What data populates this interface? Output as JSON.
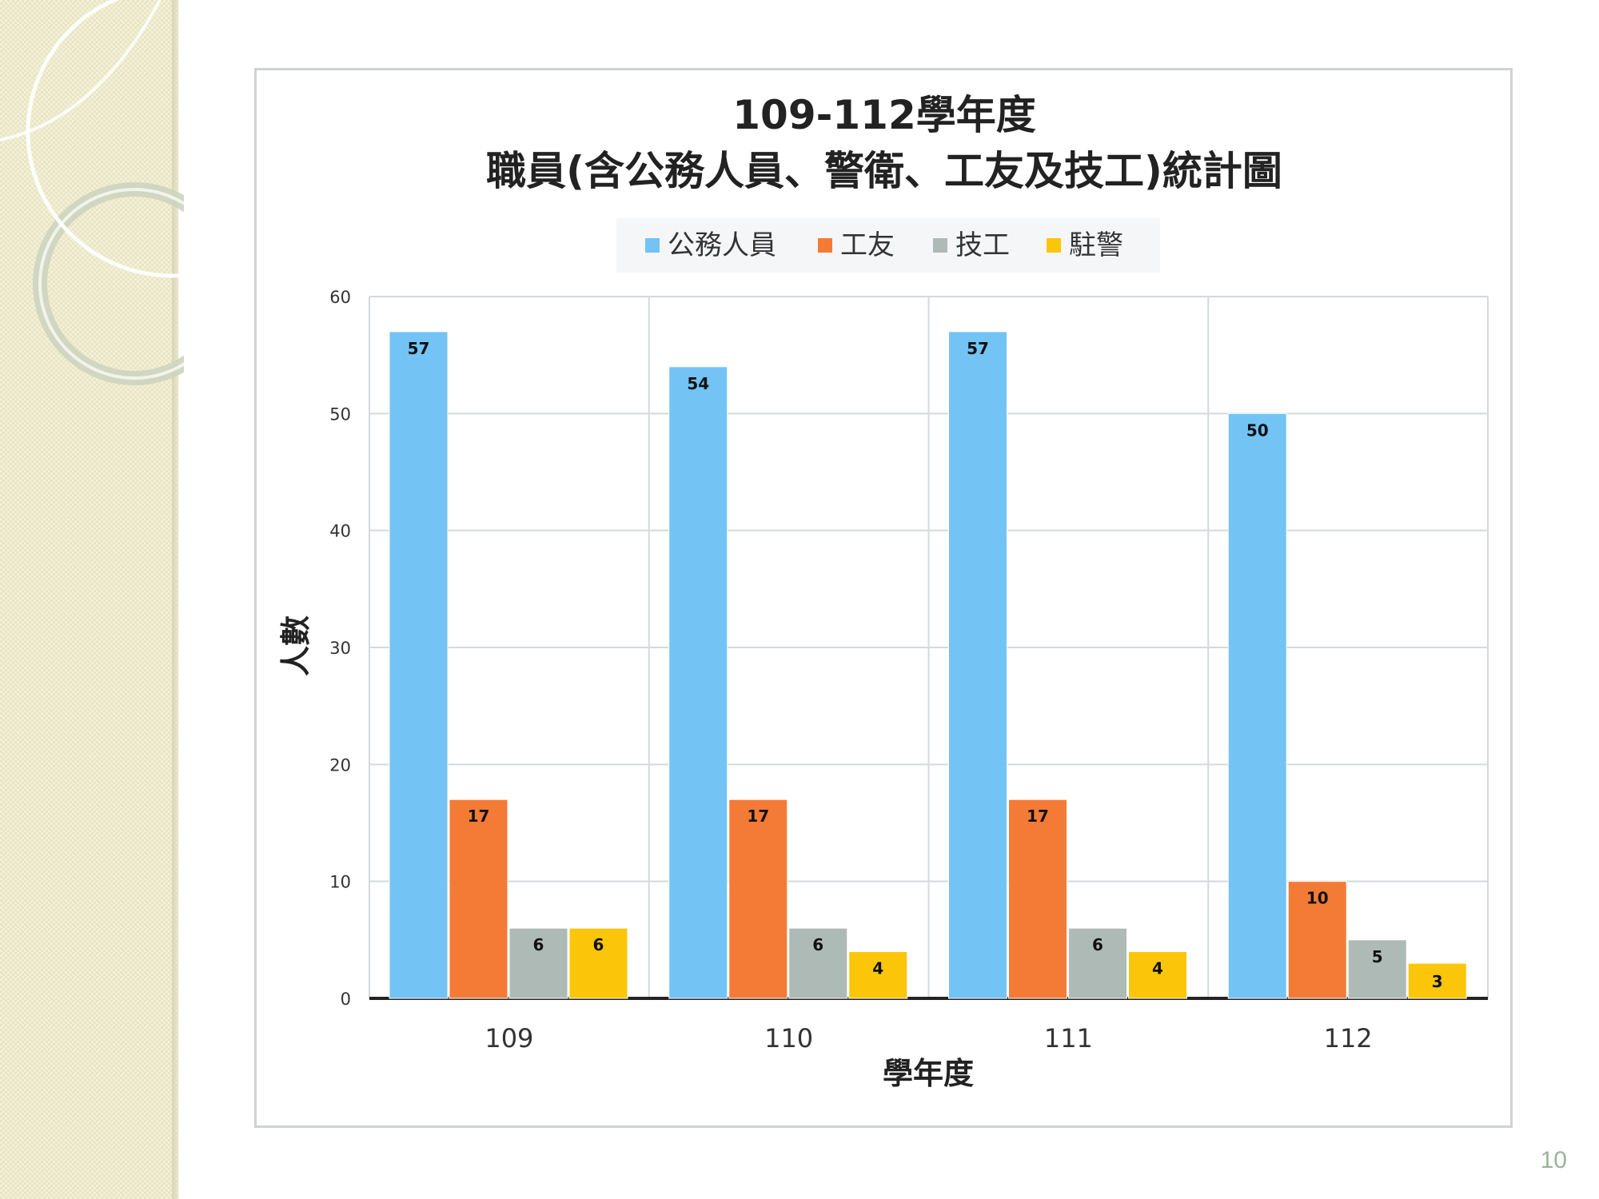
{
  "slide": {
    "page_number": "10"
  },
  "chart_data": {
    "type": "bar",
    "title_line1": "109-112學年度",
    "title_line2": "職員(含公務人員、警衛、工友及技工)統計圖",
    "xlabel": "學年度",
    "ylabel": "人數",
    "categories": [
      "109",
      "110",
      "111",
      "112"
    ],
    "series": [
      {
        "name": "公務人員",
        "color": "#73c3f5",
        "values": [
          57,
          54,
          57,
          50
        ]
      },
      {
        "name": "工友",
        "color": "#f47b36",
        "values": [
          17,
          17,
          17,
          10
        ]
      },
      {
        "name": "技工",
        "color": "#aebab6",
        "values": [
          6,
          6,
          6,
          5
        ]
      },
      {
        "name": "駐警",
        "color": "#fbc60a",
        "values": [
          6,
          4,
          4,
          3
        ]
      }
    ],
    "ylim": [
      0,
      60
    ],
    "yticks": [
      "0",
      "10",
      "20",
      "30",
      "40",
      "50",
      "60"
    ],
    "grid": true,
    "legend_position": "top"
  }
}
